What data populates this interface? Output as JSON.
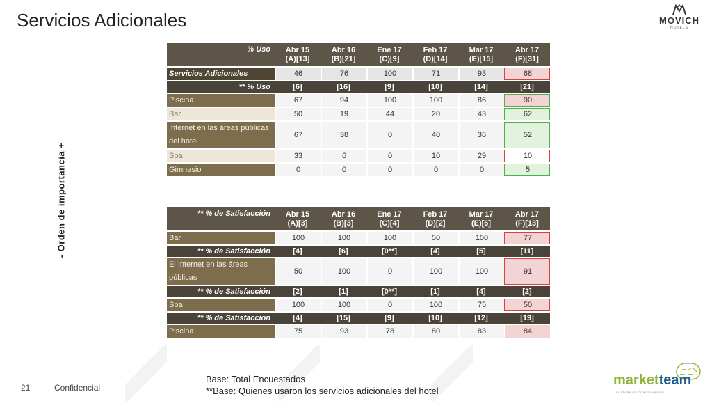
{
  "title": "Servicios Adicionales",
  "logo": {
    "brand": "MOVICH",
    "sub": "HOTELS"
  },
  "side_label": "-  Orden de importancia  +",
  "table1": {
    "header": {
      "label": "% Uso",
      "cols": [
        [
          "Abr 15",
          "(A)[13]"
        ],
        [
          "Abr 16",
          "(B)[21]"
        ],
        [
          "Ene 17",
          "(C)[9]"
        ],
        [
          "Feb 17",
          "(D)[14]"
        ],
        [
          "Mar 17",
          "(E)[15]"
        ],
        [
          "Abr 17",
          "(F)[31]"
        ]
      ]
    },
    "main": {
      "label": "Servicios Adicionales",
      "values": [
        "46",
        "76",
        "100",
        "71",
        "93",
        "68"
      ]
    },
    "sub": {
      "label": "** % Uso",
      "values": [
        "[6]",
        "[16]",
        "[9]",
        "[10]",
        "[14]",
        "[21]"
      ]
    },
    "rows": [
      {
        "label": "Piscina",
        "values": [
          "67",
          "94",
          "100",
          "100",
          "86",
          "90"
        ]
      },
      {
        "label": "Bar",
        "values": [
          "50",
          "19",
          "44",
          "20",
          "43",
          "62"
        ]
      },
      {
        "label": "Internet en las áreas públicas del hotel",
        "values": [
          "67",
          "38",
          "0",
          "40",
          "36",
          "52"
        ]
      },
      {
        "label": "Spa",
        "values": [
          "33",
          "6",
          "0",
          "10",
          "29",
          "10"
        ]
      },
      {
        "label": "Gimnasio",
        "values": [
          "0",
          "0",
          "0",
          "0",
          "0",
          "5"
        ]
      }
    ]
  },
  "table2": {
    "header": {
      "label": "** % de Satisfacción",
      "cols": [
        [
          "Abr 15",
          "(A)[3]"
        ],
        [
          "Abr 16",
          "(B)[3]"
        ],
        [
          "Ene 17",
          "(C)[4]"
        ],
        [
          "Feb 17",
          "(D)[2]"
        ],
        [
          "Mar 17",
          "(E)[6]"
        ],
        [
          "Abr 17",
          "(F)[13]"
        ]
      ]
    },
    "bar": {
      "label": "Bar",
      "values": [
        "100",
        "100",
        "100",
        "50",
        "100",
        "77"
      ]
    },
    "sub1": {
      "label": "** % de Satisfacción",
      "values": [
        "[4]",
        "[6]",
        "[0**]",
        "[4]",
        "[5]",
        "[11]"
      ]
    },
    "internet": {
      "label": "El Internet en las áreas públicas",
      "values": [
        "50",
        "100",
        "0",
        "100",
        "100",
        "91"
      ]
    },
    "sub2": {
      "label": "** % de Satisfacción",
      "values": [
        "[2]",
        "[1]",
        "[0**]",
        "[1]",
        "[4]",
        "[2]"
      ]
    },
    "spa": {
      "label": "Spa",
      "values": [
        "100",
        "100",
        "0",
        "100",
        "75",
        "50"
      ]
    },
    "sub3": {
      "label": "** % de Satisfacción",
      "values": [
        "[4]",
        "[15]",
        "[9]",
        "[10]",
        "[12]",
        "[19]"
      ]
    },
    "piscina": {
      "label": "Piscina",
      "values": [
        "75",
        "93",
        "78",
        "80",
        "83",
        "84"
      ]
    }
  },
  "footer": {
    "page": "21",
    "confidential": "Confidencial"
  },
  "base": {
    "line1": "Base: Total Encuestados",
    "line2": "**Base: Quienes usaron los servicios adicionales del hotel"
  },
  "marketteam": {
    "a": "market",
    "b": "team",
    "tagline": "CULTURA DE CONOCIMIENTO"
  },
  "colors": {
    "label_bg": "#7d6d4d",
    "header_bg": "#5d5548",
    "highlight_red": "#d94040",
    "highlight_green": "#4cb04c"
  }
}
